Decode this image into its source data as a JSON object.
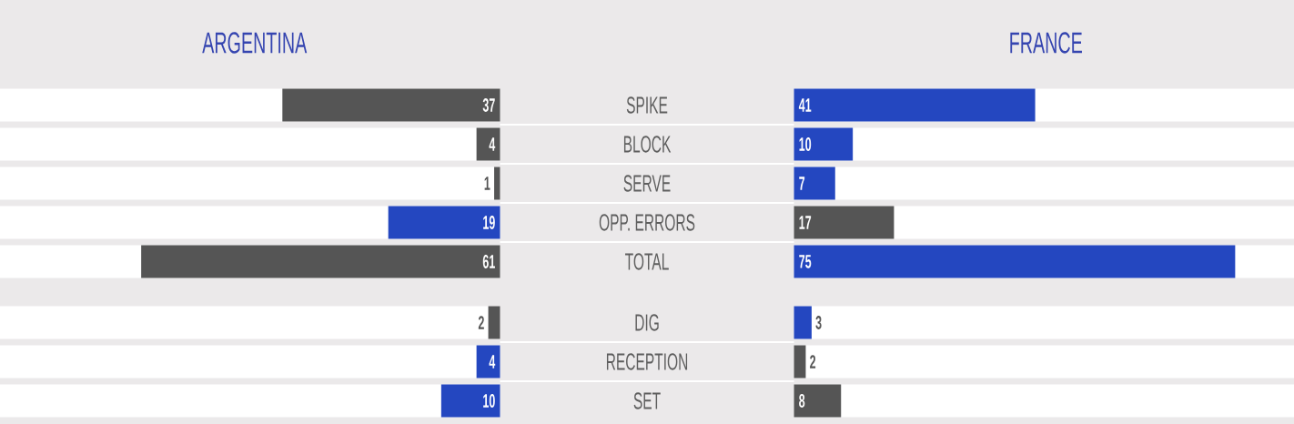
{
  "chart_data": [
    {
      "type": "bar",
      "orientation": "horizontal",
      "categories": [
        "SPIKE",
        "BLOCK",
        "SERVE",
        "OPP. ERRORS",
        "TOTAL"
      ],
      "series": [
        {
          "name": "ARGENTINA",
          "colors": [
            "#555555",
            "#555555",
            "#555555",
            "#2447c0",
            "#555555"
          ],
          "values": [
            37,
            4,
            1,
            19,
            61
          ]
        }
      ],
      "xlim": [
        85,
        0
      ],
      "data_labels": true,
      "tick_labels": false
    },
    {
      "type": "bar",
      "orientation": "horizontal",
      "categories": [
        "SPIKE",
        "BLOCK",
        "SERVE",
        "OPP. ERRORS",
        "TOTAL"
      ],
      "series": [
        {
          "name": "FRANCE",
          "colors": [
            "#2447c0",
            "#2447c0",
            "#2447c0",
            "#555555",
            "#2447c0"
          ],
          "values": [
            41,
            10,
            7,
            17,
            75
          ]
        }
      ],
      "xlim": [
        0,
        85
      ],
      "data_labels": true,
      "tick_labels": "y"
    },
    {
      "type": "bar",
      "orientation": "horizontal",
      "categories": [
        "DIG",
        "RECEPTION",
        "SET"
      ],
      "series": [
        {
          "colors": [
            "#555555",
            "#2447c0",
            "#2447c0"
          ],
          "values": [
            2,
            4,
            10
          ]
        }
      ],
      "xlim": [
        85,
        0
      ],
      "data_labels": true,
      "tick_labels": false
    },
    {
      "type": "bar",
      "orientation": "horizontal",
      "categories": [
        "DIG",
        "RECEPTION",
        "SET"
      ],
      "series": [
        {
          "colors": [
            "#2447c0",
            "#555555",
            "#555555"
          ],
          "values": [
            3,
            2,
            8
          ]
        }
      ],
      "xlim": [
        0,
        85
      ],
      "data_labels": true,
      "tick_labels": "y"
    }
  ]
}
